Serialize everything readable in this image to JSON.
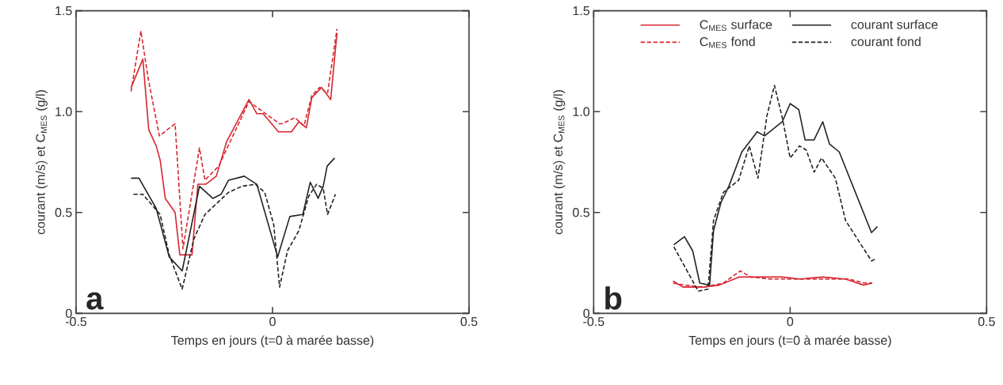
{
  "chart_data": [
    {
      "type": "line",
      "xlabel": "Temps en jours (t=0 à marée basse)",
      "ylabel": "courant (m/s) et C$_{MES}$ (g/l)",
      "xlim": [
        -0.5,
        0.5
      ],
      "ylim": [
        0,
        1.5
      ],
      "xticks": [
        -0.5,
        0,
        0.5
      ],
      "yticks": [
        0,
        0.5,
        {
          "value": 1,
          "label": "1.0"
        },
        1.5
      ],
      "annotations": [
        "a"
      ],
      "series": [
        {
          "color": "#d7262e",
          "line_style": "solid",
          "x": [
            -0.36,
            -0.33,
            -0.315,
            -0.296,
            -0.286,
            -0.273,
            -0.248,
            -0.236,
            -0.205,
            -0.19,
            -0.17,
            -0.143,
            -0.117,
            -0.06,
            -0.04,
            -0.024,
            0.015,
            0.048,
            0.067,
            0.086,
            0.1,
            0.125,
            0.148,
            0.164
          ],
          "values": [
            1.12,
            1.26,
            0.91,
            0.83,
            0.76,
            0.57,
            0.5,
            0.29,
            0.29,
            0.64,
            0.64,
            0.68,
            0.85,
            1.06,
            0.99,
            0.99,
            0.9,
            0.9,
            0.95,
            0.92,
            1.07,
            1.12,
            1.06,
            1.39
          ]
        },
        {
          "color": "#222222",
          "line_style": "solid",
          "x": [
            -0.36,
            -0.34,
            -0.296,
            -0.263,
            -0.23,
            -0.186,
            -0.152,
            -0.131,
            -0.112,
            -0.072,
            -0.04,
            0.013,
            0.044,
            0.077,
            0.096,
            0.116,
            0.129,
            0.139,
            0.158
          ],
          "values": [
            0.67,
            0.67,
            0.52,
            0.28,
            0.21,
            0.63,
            0.57,
            0.59,
            0.66,
            0.68,
            0.64,
            0.28,
            0.48,
            0.49,
            0.65,
            0.57,
            0.63,
            0.73,
            0.77
          ]
        },
        {
          "color": "#d7262e",
          "line_style": "dashed",
          "x": [
            -0.36,
            -0.335,
            -0.317,
            -0.288,
            -0.248,
            -0.228,
            -0.186,
            -0.172,
            -0.137,
            -0.06,
            0.018,
            0.024,
            0.057,
            0.08,
            0.1,
            0.12,
            0.14,
            0.164
          ],
          "values": [
            1.1,
            1.4,
            1.17,
            0.88,
            0.94,
            0.32,
            0.82,
            0.66,
            0.73,
            1.05,
            0.94,
            0.94,
            0.97,
            0.93,
            1.08,
            1.12,
            1.09,
            1.41
          ]
        },
        {
          "color": "#222222",
          "line_style": "dashed",
          "x": [
            -0.354,
            -0.33,
            -0.286,
            -0.263,
            -0.23,
            -0.2,
            -0.172,
            -0.112,
            -0.078,
            -0.044,
            -0.02,
            0.003,
            0.018,
            0.038,
            0.067,
            0.092,
            0.112,
            0.129,
            0.14,
            0.16
          ],
          "values": [
            0.59,
            0.59,
            0.49,
            0.29,
            0.12,
            0.37,
            0.49,
            0.6,
            0.63,
            0.64,
            0.6,
            0.44,
            0.13,
            0.31,
            0.41,
            0.58,
            0.64,
            0.62,
            0.49,
            0.59
          ]
        }
      ]
    },
    {
      "type": "line",
      "xlabel": "Temps en jours (t=0 à marée basse)",
      "ylabel": "courant (m/s) et C$_{MES}$ (g/l)",
      "xlim": [
        -0.5,
        0.5
      ],
      "ylim": [
        0,
        1.5
      ],
      "xticks": [
        -0.5,
        0,
        0.5
      ],
      "yticks": [
        0,
        0.5,
        {
          "value": 1,
          "label": "1.0"
        },
        1.5
      ],
      "annotations": [
        "b"
      ],
      "legend": "top",
      "series": [
        {
          "name": "C$_{MES}$ surface",
          "color": "#d7262e",
          "line_style": "solid",
          "x": [
            -0.298,
            -0.273,
            -0.22,
            -0.18,
            -0.13,
            -0.065,
            -0.02,
            0.025,
            0.083,
            0.141,
            0.187,
            0.209
          ],
          "values": [
            0.16,
            0.13,
            0.13,
            0.14,
            0.18,
            0.18,
            0.18,
            0.17,
            0.18,
            0.17,
            0.14,
            0.15
          ]
        },
        {
          "name": "courant surface",
          "color": "#222222",
          "line_style": "solid",
          "x": [
            -0.296,
            -0.269,
            -0.248,
            -0.23,
            -0.205,
            -0.195,
            -0.176,
            -0.156,
            -0.123,
            -0.084,
            -0.065,
            -0.02,
            0,
            0.022,
            0.038,
            0.061,
            0.083,
            0.1,
            0.125,
            0.207,
            0.222
          ],
          "values": [
            0.34,
            0.38,
            0.31,
            0.15,
            0.14,
            0.41,
            0.55,
            0.63,
            0.8,
            0.9,
            0.88,
            0.95,
            1.04,
            1.01,
            0.86,
            0.86,
            0.95,
            0.84,
            0.8,
            0.4,
            0.43
          ]
        },
        {
          "name": "C$_{MES}$ fond",
          "color": "#d7262e",
          "line_style": "dashed",
          "x": [
            -0.298,
            -0.27,
            -0.22,
            -0.17,
            -0.127,
            -0.1,
            -0.05,
            0,
            0.05,
            0.1,
            0.15,
            0.19,
            0.209
          ],
          "values": [
            0.15,
            0.14,
            0.13,
            0.15,
            0.21,
            0.18,
            0.17,
            0.17,
            0.17,
            0.17,
            0.17,
            0.15,
            0.15
          ]
        },
        {
          "name": "courant fond",
          "color": "#222222",
          "line_style": "dashed",
          "x": [
            -0.296,
            -0.234,
            -0.209,
            -0.195,
            -0.17,
            -0.131,
            -0.104,
            -0.082,
            -0.059,
            -0.04,
            -0.02,
            0,
            0.024,
            0.041,
            0.061,
            0.08,
            0.115,
            0.141,
            0.207,
            0.218
          ],
          "values": [
            0.33,
            0.11,
            0.12,
            0.46,
            0.6,
            0.66,
            0.83,
            0.67,
            0.98,
            1.13,
            0.97,
            0.77,
            0.83,
            0.81,
            0.7,
            0.77,
            0.67,
            0.46,
            0.26,
            0.27
          ]
        }
      ]
    }
  ]
}
